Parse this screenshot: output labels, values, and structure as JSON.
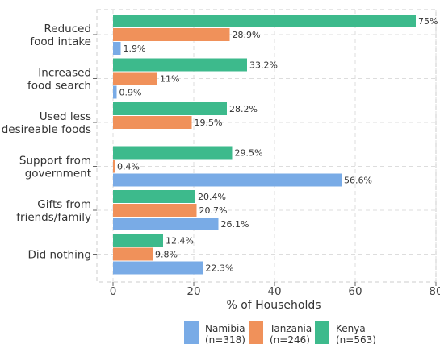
{
  "chart_data": {
    "type": "bar",
    "orientation": "horizontal",
    "categories": [
      [
        "Reduced",
        "food intake"
      ],
      [
        "Increased",
        "food search"
      ],
      [
        "Used less",
        "desireable foods"
      ],
      [
        "Support from",
        "government"
      ],
      [
        "Gifts from",
        "friends/family"
      ],
      [
        "Did nothing"
      ]
    ],
    "series": [
      {
        "name": "Kenya",
        "legend": [
          "Kenya",
          "(n=563)"
        ],
        "color": "#3dba8c",
        "values": [
          75,
          33.2,
          28.2,
          29.5,
          20.4,
          12.4
        ],
        "labels": [
          "75%",
          "33.2%",
          "28.2%",
          "29.5%",
          "20.4%",
          "12.4%"
        ]
      },
      {
        "name": "Tanzania",
        "legend": [
          "Tanzania",
          "(n=246)"
        ],
        "color": "#f0915a",
        "values": [
          28.9,
          11,
          19.5,
          0.4,
          20.7,
          9.8
        ],
        "labels": [
          "28.9%",
          "11%",
          "19.5%",
          "0.4%",
          "20.7%",
          "9.8%"
        ]
      },
      {
        "name": "Namibia",
        "legend": [
          "Namibia",
          "(n=318)"
        ],
        "color": "#79abe6",
        "values": [
          1.9,
          0.9,
          null,
          56.6,
          26.1,
          22.3
        ],
        "labels": [
          "1.9%",
          "0.9%",
          null,
          "56.6%",
          "26.1%",
          "22.3%"
        ]
      }
    ],
    "legend_order": [
      "Namibia",
      "Tanzania",
      "Kenya"
    ],
    "xlabel": "% of Households",
    "ylabel": "",
    "xlim": [
      0,
      80
    ],
    "xticks": [
      0,
      20,
      40,
      60,
      80
    ],
    "grid": true,
    "legend_position": "bottom"
  }
}
